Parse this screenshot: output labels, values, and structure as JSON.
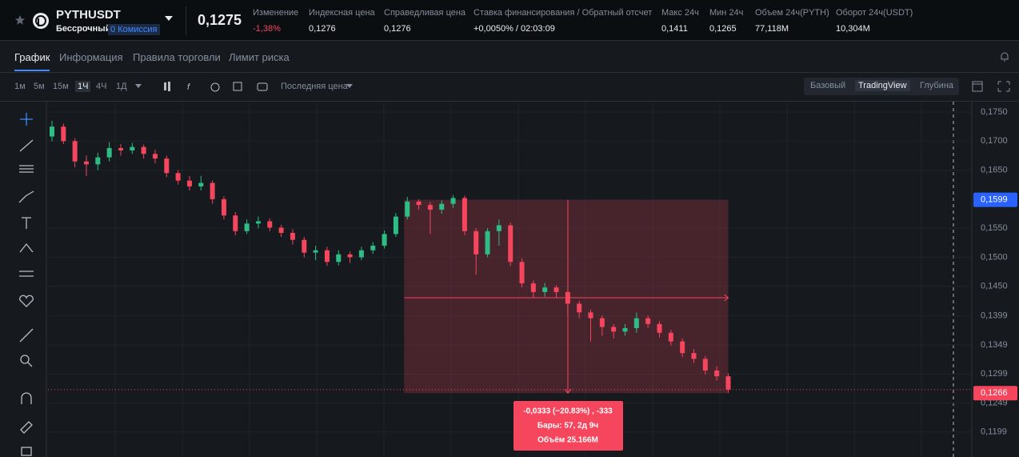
{
  "header": {
    "symbol": "PYTHUSDT",
    "contract_type": "Бессрочный",
    "fee_badge": "0 Комиссия",
    "price": "0,1275",
    "stats": [
      {
        "label": "Изменение",
        "value": "-1,38%",
        "color": "#f6465d"
      },
      {
        "label": "Индексная цена",
        "value": "0,1276"
      },
      {
        "label": "Справедливая цена",
        "value": "0,1276"
      },
      {
        "label": "Ставка финансирования / Обратный отсчет",
        "value": "+0,0050% / 02:03:09"
      },
      {
        "label": "Макс 24ч",
        "value": "0,1411"
      },
      {
        "label": "Мин 24ч",
        "value": "0,1265"
      },
      {
        "label": "Объем 24ч(PYTH)",
        "value": "77,118M"
      },
      {
        "label": "Оборот 24ч(USDT)",
        "value": "10,304M"
      }
    ]
  },
  "tabs": [
    "График",
    "Информация",
    "Правила торговли",
    "Лимит риска"
  ],
  "toolbar": {
    "intervals": [
      "1м",
      "5м",
      "15м",
      "1Ч",
      "4Ч",
      "1Д"
    ],
    "price_type": "Последняя цена",
    "views": [
      "Базовый",
      "TradingView",
      "Глубина"
    ]
  },
  "chart_data": {
    "type": "candlestick",
    "open": [
      0.1708,
      0.1725,
      0.17,
      0.1665,
      0.166,
      0.1672,
      0.1688,
      0.1684,
      0.169,
      0.1678,
      0.167,
      0.1645,
      0.1632,
      0.1622,
      0.1628,
      0.16,
      0.1572,
      0.1545,
      0.1558,
      0.1562,
      0.1551,
      0.1542,
      0.153,
      0.1508,
      0.1512,
      0.1492,
      0.1505,
      0.15,
      0.1512,
      0.152,
      0.154,
      0.157,
      0.1596,
      0.159,
      0.1582,
      0.1592,
      0.1602,
      0.1545,
      0.1505,
      0.1545,
      0.1555,
      0.1492,
      0.1455,
      0.144,
      0.1448,
      0.144,
      0.142,
      0.1405,
      0.1395,
      0.138,
      0.1372,
      0.1378,
      0.1395,
      0.1385,
      0.137,
      0.1355,
      0.1335,
      0.1325,
      0.1305,
      0.1295
    ],
    "high": [
      0.1735,
      0.173,
      0.1705,
      0.1675,
      0.168,
      0.1698,
      0.1695,
      0.1697,
      0.1694,
      0.1685,
      0.1675,
      0.165,
      0.164,
      0.164,
      0.1632,
      0.1605,
      0.1578,
      0.1565,
      0.157,
      0.1567,
      0.1556,
      0.1548,
      0.1535,
      0.152,
      0.1518,
      0.1512,
      0.151,
      0.1518,
      0.1526,
      0.1546,
      0.1576,
      0.1604,
      0.16,
      0.1595,
      0.1598,
      0.1607,
      0.1606,
      0.155,
      0.155,
      0.1565,
      0.156,
      0.1498,
      0.146,
      0.1456,
      0.1452,
      0.1445,
      0.1425,
      0.141,
      0.14,
      0.1385,
      0.1385,
      0.1405,
      0.14,
      0.139,
      0.1375,
      0.136,
      0.1342,
      0.133,
      0.1312,
      0.13
    ],
    "low": [
      0.17,
      0.1695,
      0.1655,
      0.164,
      0.165,
      0.1665,
      0.1675,
      0.1678,
      0.167,
      0.1662,
      0.1638,
      0.1625,
      0.1615,
      0.1615,
      0.1592,
      0.1565,
      0.1538,
      0.154,
      0.155,
      0.1545,
      0.1535,
      0.1522,
      0.15,
      0.1495,
      0.1485,
      0.1486,
      0.149,
      0.1495,
      0.1506,
      0.1515,
      0.1535,
      0.1565,
      0.1582,
      0.154,
      0.1575,
      0.1585,
      0.1538,
      0.147,
      0.15,
      0.152,
      0.1485,
      0.1448,
      0.143,
      0.1432,
      0.143,
      0.14,
      0.1395,
      0.1355,
      0.1365,
      0.136,
      0.1365,
      0.137,
      0.1378,
      0.1362,
      0.1348,
      0.1328,
      0.1318,
      0.1298,
      0.1288,
      0.1266
    ],
    "close": [
      0.1725,
      0.17,
      0.1665,
      0.166,
      0.1672,
      0.1688,
      0.1684,
      0.169,
      0.1678,
      0.167,
      0.1645,
      0.1632,
      0.1622,
      0.1628,
      0.16,
      0.1572,
      0.1545,
      0.1558,
      0.1562,
      0.1551,
      0.1542,
      0.153,
      0.1508,
      0.1512,
      0.1492,
      0.1505,
      0.15,
      0.1512,
      0.152,
      0.154,
      0.157,
      0.1596,
      0.159,
      0.1582,
      0.1592,
      0.1602,
      0.1545,
      0.1505,
      0.1545,
      0.1555,
      0.1492,
      0.1455,
      0.144,
      0.1448,
      0.144,
      0.142,
      0.1405,
      0.1395,
      0.138,
      0.1372,
      0.1378,
      0.1395,
      0.1385,
      0.137,
      0.1355,
      0.1335,
      0.1325,
      0.1305,
      0.1295,
      0.1272
    ],
    "up_color": "#2ebd85",
    "down_color": "#f6465d",
    "ylim": [
      0.1156,
      0.1768
    ],
    "yticks": [
      {
        "value": 0.175,
        "label": "0,1750"
      },
      {
        "value": 0.17,
        "label": "0,1700"
      },
      {
        "value": 0.165,
        "label": "0,1650"
      },
      {
        "value": 0.155,
        "label": "0,1550"
      },
      {
        "value": 0.15,
        "label": "0,1500"
      },
      {
        "value": 0.145,
        "label": "0,1450"
      },
      {
        "value": 0.1399,
        "label": "0,1399"
      },
      {
        "value": 0.1349,
        "label": "0,1349"
      },
      {
        "value": 0.1299,
        "label": "0,1299"
      },
      {
        "value": 0.1249,
        "label": "0,1249"
      },
      {
        "value": 0.1199,
        "label": "0,1199"
      }
    ],
    "grid": true,
    "price_tags": [
      {
        "value": 0.1599,
        "label": "0,1599",
        "color": "#2962ff"
      },
      {
        "value": 0.1266,
        "label": "0,1266",
        "color": "#f6465d"
      }
    ],
    "measure": {
      "from": 0.1599,
      "to": 0.1266,
      "lines": [
        "-0,0333 (−20.83%) , -333",
        "Бары: 57, 2д 9ч",
        "Объём 25.166M"
      ]
    }
  }
}
